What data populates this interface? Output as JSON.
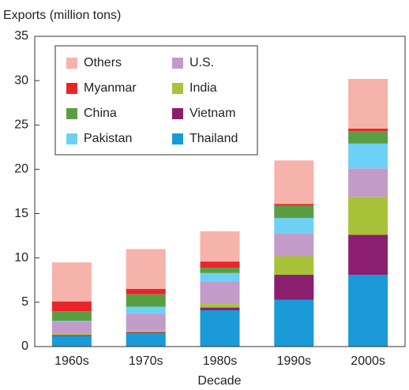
{
  "chart_data": {
    "type": "stacked_bar",
    "y_label": "Exports (million tons)",
    "x_label": "Decade",
    "categories": [
      "1960s",
      "1970s",
      "1980s",
      "1990s",
      "2000s"
    ],
    "series": [
      {
        "name": "Thailand",
        "color": "#1a9ad6",
        "values": [
          1.2,
          1.5,
          4.1,
          5.3,
          8.1
        ]
      },
      {
        "name": "Vietnam",
        "color": "#8b1e6e",
        "values": [
          0.1,
          0.1,
          0.3,
          2.8,
          4.5
        ]
      },
      {
        "name": "India",
        "color": "#a8c23a",
        "values": [
          0.2,
          0.2,
          0.4,
          2.1,
          4.3
        ]
      },
      {
        "name": "U.S.",
        "color": "#c39bc8",
        "values": [
          1.3,
          1.9,
          2.5,
          2.6,
          3.2
        ]
      },
      {
        "name": "Pakistan",
        "color": "#6dd0f5",
        "values": [
          0.1,
          0.8,
          1.0,
          1.7,
          2.8
        ]
      },
      {
        "name": "China",
        "color": "#5a9e44",
        "values": [
          1.1,
          1.4,
          0.6,
          1.4,
          1.4
        ]
      },
      {
        "name": "Myanmar",
        "color": "#e8262a",
        "values": [
          1.1,
          0.6,
          0.7,
          0.2,
          0.3
        ]
      },
      {
        "name": "Others",
        "color": "#f6b3ab",
        "values": [
          4.4,
          4.5,
          3.4,
          4.9,
          5.6
        ]
      }
    ],
    "ylim": [
      0,
      35
    ],
    "yticks": [
      0,
      5,
      10,
      15,
      20,
      25,
      30,
      35
    ],
    "legend": "upper left"
  }
}
